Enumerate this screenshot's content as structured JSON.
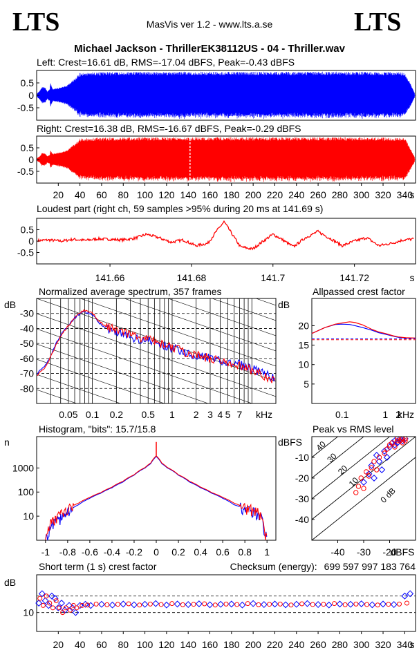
{
  "header": {
    "logo_left": "LTS",
    "logo_right": "LTS",
    "app_title": "MasVis ver 1.2 - www.lts.a.se",
    "file_title": "Michael Jackson - ThrillerEK38112US - 04 - Thriller.wav"
  },
  "colors": {
    "left": "#0000ff",
    "right": "#ff0000",
    "grid": "#000000"
  },
  "chart_data": [
    {
      "id": "waveform-left",
      "type": "line",
      "title": "Left: Crest=16.61 dB, RMS=-17.04 dBFS, Peak=-0.43 dBFS",
      "yticks": [
        "0.5",
        "0",
        "-0.5"
      ],
      "ylim": [
        -1,
        1
      ],
      "xlim": [
        0,
        350
      ],
      "envelope": {
        "x": [
          0,
          3,
          5,
          8,
          10,
          12,
          13,
          14,
          15,
          20,
          24,
          28,
          32,
          36,
          40,
          50,
          100,
          200,
          300,
          340,
          345,
          350
        ],
        "amp": [
          0.05,
          0.2,
          0.35,
          0.3,
          0.15,
          0.25,
          0.55,
          0.35,
          0.25,
          0.3,
          0.35,
          0.4,
          0.55,
          0.7,
          0.9,
          0.93,
          0.95,
          0.95,
          0.95,
          0.93,
          0.5,
          0.02
        ]
      },
      "series": [
        {
          "name": "Left",
          "color": "#0000ff"
        }
      ]
    },
    {
      "id": "waveform-right",
      "type": "line",
      "title": "Right: Crest=16.38 dB, RMS=-16.67 dBFS, Peak=-0.29 dBFS",
      "yticks": [
        "0.5",
        "0",
        "-0.5"
      ],
      "ylim": [
        -1,
        1
      ],
      "xlim": [
        0,
        350
      ],
      "xticks": [
        20,
        40,
        60,
        80,
        100,
        120,
        140,
        160,
        180,
        200,
        220,
        240,
        260,
        280,
        300,
        320,
        340
      ],
      "xunit": "s",
      "marker_x": 141.69,
      "envelope": {
        "x": [
          0,
          3,
          5,
          8,
          10,
          12,
          13,
          14,
          15,
          20,
          24,
          28,
          32,
          36,
          40,
          50,
          100,
          200,
          300,
          340,
          345,
          350
        ],
        "amp": [
          0.05,
          0.15,
          0.3,
          0.25,
          0.15,
          0.2,
          0.45,
          0.3,
          0.25,
          0.3,
          0.35,
          0.4,
          0.55,
          0.7,
          0.9,
          0.93,
          0.95,
          0.95,
          0.95,
          0.93,
          0.5,
          0.02
        ]
      },
      "series": [
        {
          "name": "Right",
          "color": "#ff0000"
        }
      ]
    },
    {
      "id": "loudest-part",
      "type": "line",
      "title": "Loudest part (right ch, 59 samples >95% during 20 ms at 141.69 s)",
      "yticks": [
        "0.5",
        "0",
        "-0.5"
      ],
      "ylim": [
        -1,
        1
      ],
      "xlim": [
        141.642,
        141.735
      ],
      "xticks": [
        141.66,
        141.68,
        141.7,
        141.72
      ],
      "xticklabels": [
        "141.66",
        "141.68",
        "141.7",
        "141.72"
      ],
      "xunit": "s",
      "x": [
        141.642,
        141.645,
        141.648,
        141.651,
        141.654,
        141.657,
        141.66,
        141.663,
        141.666,
        141.669,
        141.672,
        141.675,
        141.678,
        141.681,
        141.684,
        141.686,
        141.688,
        141.69,
        141.692,
        141.695,
        141.698,
        141.7,
        141.702,
        141.705,
        141.708,
        141.711,
        141.714,
        141.717,
        141.72,
        141.723,
        141.726,
        141.729,
        141.732,
        141.735
      ],
      "y": [
        0.02,
        0.05,
        0.0,
        0.08,
        0.03,
        0.1,
        0.08,
        0.05,
        0.12,
        0.3,
        0.15,
        -0.05,
        0.05,
        -0.2,
        -0.1,
        0.4,
        0.85,
        0.3,
        -0.25,
        -0.35,
        0.05,
        0.3,
        0.1,
        -0.25,
        0.15,
        0.42,
        0.12,
        -0.2,
        0.0,
        0.15,
        -0.2,
        -0.1,
        0.05,
        0.1
      ],
      "series": [
        {
          "name": "Right",
          "color": "#ff0000"
        }
      ]
    },
    {
      "id": "spectrum",
      "type": "line",
      "title": "Normalized average spectrum, 357 frames",
      "ylabel": "dB",
      "yticks": [
        "-30",
        "-40",
        "-50",
        "-60",
        "-70",
        "-80"
      ],
      "ylim": [
        -90,
        -20
      ],
      "xscale": "log",
      "xlim": [
        0.02,
        20
      ],
      "xticks": [
        0.05,
        0.1,
        0.2,
        0.5,
        1,
        2,
        3,
        4,
        5,
        7
      ],
      "xticklabels": [
        "0.05",
        "0.1",
        "0.2",
        "0.5",
        "1",
        "2",
        "3",
        "4",
        "5",
        "7"
      ],
      "xunit": "kHz",
      "x": [
        0.02,
        0.025,
        0.03,
        0.035,
        0.04,
        0.05,
        0.06,
        0.07,
        0.08,
        0.1,
        0.12,
        0.15,
        0.2,
        0.3,
        0.5,
        0.7,
        1,
        1.5,
        2,
        3,
        4,
        5,
        7,
        10,
        15,
        20
      ],
      "series": [
        {
          "name": "Left",
          "color": "#0000ff",
          "values": [
            -70,
            -66,
            -58,
            -50,
            -44,
            -38,
            -33,
            -30,
            -29,
            -31,
            -36,
            -40,
            -42,
            -46,
            -48,
            -51,
            -53,
            -56,
            -58,
            -60,
            -62,
            -63,
            -64,
            -67,
            -71,
            -74
          ]
        },
        {
          "name": "Right",
          "color": "#ff0000",
          "values": [
            -71,
            -67,
            -59,
            -51,
            -45,
            -38,
            -33,
            -29,
            -28,
            -30,
            -35,
            -39,
            -41,
            -45,
            -47,
            -50,
            -53,
            -56,
            -58,
            -60,
            -62,
            -63,
            -65,
            -68,
            -72,
            -75
          ]
        }
      ]
    },
    {
      "id": "allpassed-crest",
      "type": "line",
      "title": "Allpassed crest factor",
      "ylabel": "dB",
      "yticks": [
        "20",
        "15",
        "10",
        "5"
      ],
      "ylim": [
        0,
        27
      ],
      "xscale": "log",
      "xlim": [
        0.02,
        5
      ],
      "xticks": [
        0.1,
        1,
        2
      ],
      "xticklabels": [
        "0.1",
        "1",
        "2"
      ],
      "xunit": "kHz",
      "x": [
        0.02,
        0.04,
        0.07,
        0.1,
        0.15,
        0.2,
        0.3,
        0.5,
        0.7,
        1,
        1.5,
        2,
        3,
        5
      ],
      "series": [
        {
          "name": "Left",
          "color": "#0000ff",
          "values": [
            18,
            19.5,
            20.3,
            20.4,
            20.3,
            20,
            19.5,
            18.8,
            18.2,
            17.8,
            17.3,
            17,
            16.8,
            16.8
          ],
          "baseline": 16.61
        },
        {
          "name": "Right",
          "color": "#ff0000",
          "values": [
            18,
            19.5,
            20.4,
            20.7,
            21,
            20.8,
            20.2,
            19,
            18.4,
            18,
            17.4,
            17.1,
            16.9,
            16.8
          ],
          "baseline": 16.38
        }
      ]
    },
    {
      "id": "histogram",
      "type": "line",
      "title": "Histogram, \"bits\": 15.7/15.8",
      "ylabel": "n",
      "yscale": "log",
      "yticks": [
        "1000",
        "100",
        "10"
      ],
      "ytickvalues": [
        1000,
        100,
        10
      ],
      "ylim": [
        1,
        20000
      ],
      "xlim": [
        -1.08,
        1.08
      ],
      "xticks": [
        -1,
        -0.8,
        -0.6,
        -0.4,
        -0.2,
        0,
        0.2,
        0.4,
        0.6,
        0.8,
        1
      ],
      "xticklabels": [
        "-1",
        "-0.8",
        "-0.6",
        "-0.4",
        "-0.2",
        "0",
        "0.2",
        "0.4",
        "0.6",
        "0.8",
        "1"
      ],
      "x": [
        -1,
        -0.97,
        -0.95,
        -0.9,
        -0.85,
        -0.8,
        -0.7,
        -0.6,
        -0.5,
        -0.4,
        -0.3,
        -0.2,
        -0.1,
        -0.05,
        0,
        0.05,
        0.1,
        0.2,
        0.3,
        0.4,
        0.5,
        0.6,
        0.7,
        0.8,
        0.85,
        0.9,
        0.95,
        0.97,
        1
      ],
      "series": [
        {
          "name": "Left",
          "color": "#0000ff",
          "values": [
            1,
            2,
            4,
            6,
            10,
            15,
            30,
            55,
            90,
            150,
            260,
            500,
            1000,
            1500,
            3000,
            1500,
            1000,
            500,
            260,
            150,
            90,
            55,
            30,
            20,
            18,
            15,
            8,
            3,
            1
          ]
        },
        {
          "name": "Right",
          "color": "#ff0000",
          "values": [
            1,
            3,
            6,
            9,
            14,
            20,
            35,
            60,
            95,
            160,
            280,
            520,
            1050,
            1600,
            3200,
            1600,
            1050,
            520,
            280,
            160,
            95,
            60,
            35,
            22,
            20,
            17,
            10,
            3,
            1
          ]
        }
      ]
    },
    {
      "id": "peak-vs-rms",
      "type": "scatter",
      "title": "Peak vs RMS level",
      "ylabel": "dBFS",
      "xlabel": "dBFS",
      "yticks": [
        "-10",
        "-20",
        "-30",
        "-40"
      ],
      "ylim": [
        -50,
        0
      ],
      "xlim": [
        -50,
        -10
      ],
      "xticks": [
        -40,
        -30,
        -20
      ],
      "xticklabels": [
        "-40",
        "-30",
        "-20"
      ],
      "diag_labels": [
        "40",
        "30",
        "20",
        "10",
        "0 dB"
      ],
      "series": [
        {
          "name": "Left",
          "color": "#0000ff",
          "x": [
            -30,
            -28,
            -27,
            -26,
            -25,
            -24,
            -23,
            -22,
            -21,
            -20,
            -19,
            -18,
            -18,
            -17,
            -16,
            -16,
            -15,
            -15,
            -14
          ],
          "y": [
            -22,
            -18,
            -14,
            -20,
            -9,
            -12,
            -16,
            -7,
            -10,
            -5,
            -3,
            -4,
            -2,
            -3,
            -2,
            -1,
            -2,
            -1,
            -1
          ]
        },
        {
          "name": "Right",
          "color": "#ff0000",
          "x": [
            -33,
            -32,
            -31,
            -30,
            -29,
            -28,
            -27,
            -26,
            -25,
            -24,
            -22,
            -21,
            -20,
            -19,
            -18,
            -17,
            -17,
            -16,
            -15,
            -15,
            -14,
            -14
          ],
          "y": [
            -27,
            -24,
            -20,
            -25,
            -17,
            -19,
            -15,
            -12,
            -16,
            -10,
            -8,
            -6,
            -4,
            -3,
            -5,
            -2,
            -1,
            -2,
            -1,
            -3,
            -1,
            -2
          ]
        }
      ]
    },
    {
      "id": "short-term-crest",
      "type": "scatter",
      "title": "Short term (1 s) crest factor",
      "ylabel": "dB",
      "yticks": [
        "10"
      ],
      "ylim": [
        2,
        26
      ],
      "xlim": [
        0,
        350
      ],
      "xticks": [
        20,
        40,
        60,
        80,
        100,
        120,
        140,
        160,
        180,
        200,
        220,
        240,
        260,
        280,
        300,
        320,
        340
      ],
      "xunit": "s",
      "series": [
        {
          "name": "Left",
          "color": "#0000ff",
          "x": [
            2,
            5,
            8,
            11,
            14,
            17,
            20,
            23,
            26,
            30,
            33,
            36,
            40,
            45,
            50,
            60,
            70,
            80,
            90,
            100,
            110,
            120,
            130,
            140,
            150,
            160,
            170,
            180,
            190,
            200,
            210,
            220,
            230,
            240,
            250,
            260,
            270,
            280,
            290,
            300,
            310,
            320,
            330,
            340,
            345
          ],
          "y": [
            14,
            18,
            15,
            13,
            17,
            16,
            12,
            14,
            11,
            13,
            12,
            10,
            13,
            13.5,
            13,
            13.5,
            13.2,
            13.6,
            13.3,
            13.5,
            13.8,
            13.2,
            13.6,
            13.4,
            13.7,
            13.3,
            13.5,
            13.6,
            13.2,
            13.8,
            13.4,
            13.6,
            13.3,
            13.5,
            13.8,
            13.4,
            13.2,
            13.6,
            13.5,
            13.7,
            13.3,
            13.6,
            13.4,
            17,
            18
          ]
        },
        {
          "name": "Right",
          "color": "#ff0000",
          "x": [
            3,
            6,
            9,
            12,
            15,
            18,
            21,
            24,
            27,
            31,
            34,
            37,
            42,
            47,
            55,
            65,
            75,
            85,
            95,
            105,
            115,
            125,
            135,
            145,
            155,
            165,
            175,
            185,
            195,
            205,
            215,
            225,
            235,
            245,
            255,
            265,
            275,
            285,
            295,
            305,
            315,
            325,
            335,
            342
          ],
          "y": [
            16,
            13,
            17,
            14,
            12,
            15,
            12,
            10,
            12,
            11,
            13,
            12,
            13,
            13.2,
            13.6,
            13.3,
            13.5,
            13.7,
            13.2,
            13.6,
            13.4,
            13.8,
            13.3,
            13.5,
            13.7,
            13.2,
            13.6,
            13.4,
            13.8,
            13.3,
            13.5,
            13.6,
            13.2,
            13.7,
            13.4,
            13.5,
            13.8,
            13.3,
            13.6,
            13.4,
            13.2,
            13.5,
            13.6,
            14
          ]
        }
      ],
      "reflines": [
        17,
        10
      ]
    }
  ],
  "checksum": {
    "label": "Checksum (energy):",
    "value": "699 597 997 183 764"
  }
}
